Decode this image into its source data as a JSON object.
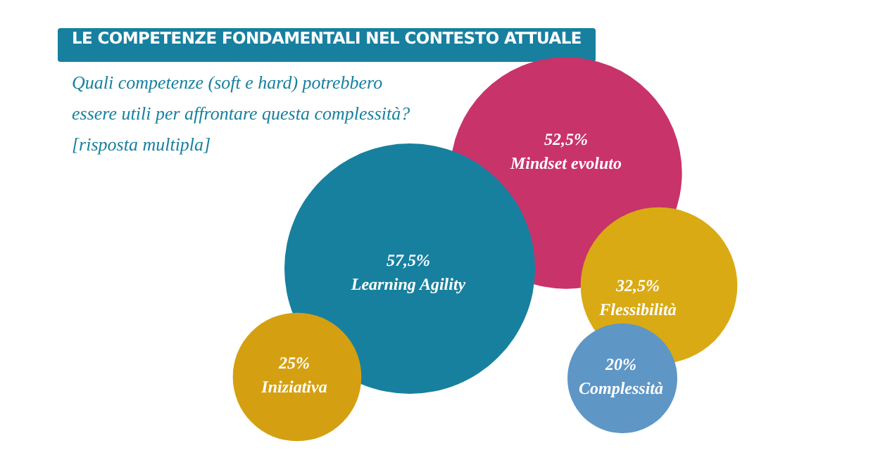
{
  "chart_data": {
    "type": "other",
    "title": "LE COMPETENZE FONDAMENTALI NEL CONTESTO ATTUALE",
    "subtitle": "Quali competenze (soft e hard) potrebbero essere utili per affrontare questa complessità? [risposta multipla]",
    "categories": [
      "Mindset evoluto",
      "Learning Agility",
      "Iniziativa",
      "Flessibilità",
      "Complessità"
    ],
    "values": [
      52.5,
      57.5,
      25,
      32.5,
      20
    ],
    "value_labels": [
      "52,5%",
      "57,5%",
      "25%",
      "32,5%",
      "20%"
    ],
    "colors": [
      "#c8336a",
      "#17809f",
      "#d4a012",
      "#d9aa14",
      "#5e96c6"
    ]
  }
}
